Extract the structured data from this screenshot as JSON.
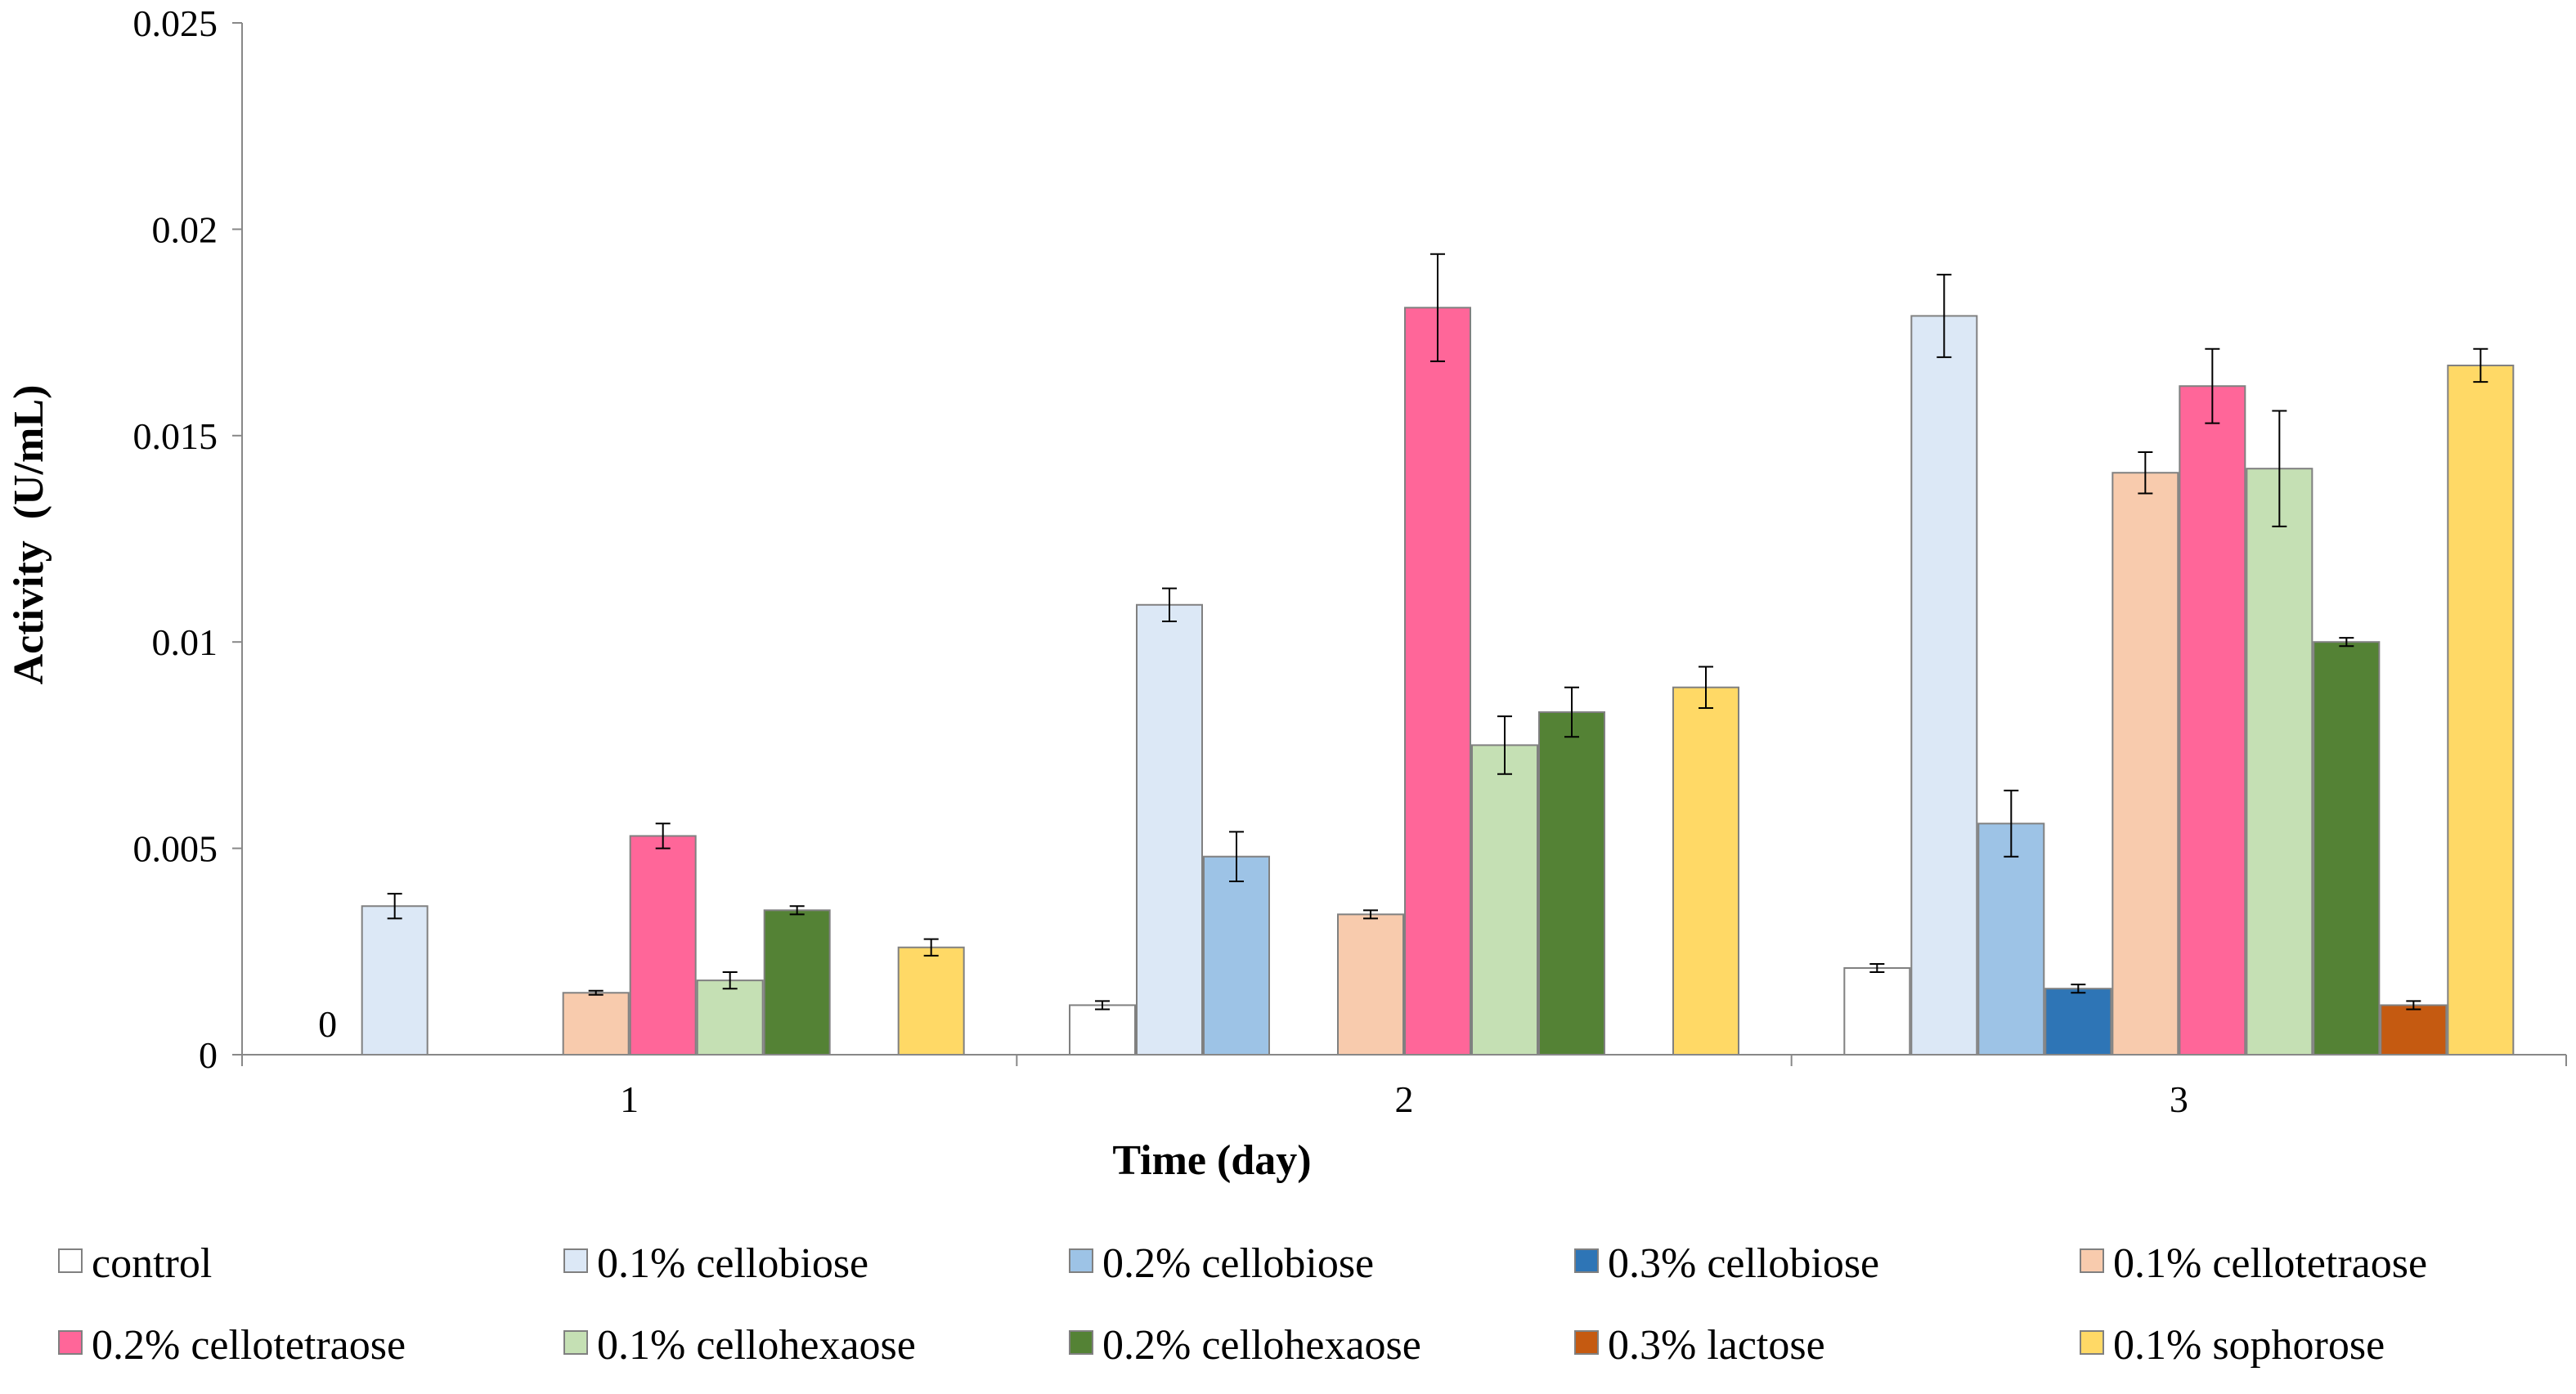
{
  "chart_data": {
    "type": "bar",
    "title": "",
    "xlabel": "Time (day)",
    "ylabel": "Activity  (U/mL)",
    "categories": [
      "1",
      "2",
      "3"
    ],
    "ylim": [
      0,
      0.025
    ],
    "yticks": [
      0,
      0.005,
      0.01,
      0.015,
      0.02,
      0.025
    ],
    "ytick_labels": [
      "0",
      "0.005",
      "0.01",
      "0.015",
      "0.02",
      "0.025"
    ],
    "grid": false,
    "legend_position": "bottom",
    "annotations": [
      {
        "text": "0",
        "category": "1",
        "series": "control"
      }
    ],
    "series": [
      {
        "name": "control",
        "color": "#ffffff",
        "values": [
          0,
          0.0012,
          0.0021
        ],
        "errors": [
          0,
          0.0001,
          0.0001
        ]
      },
      {
        "name": "0.1% cellobiose",
        "color": "#dce8f6",
        "values": [
          0.0036,
          0.0109,
          0.0179
        ],
        "errors": [
          0.0003,
          0.0004,
          0.001
        ]
      },
      {
        "name": "0.2% cellobiose",
        "color": "#9dc3e6",
        "values": [
          null,
          0.0048,
          0.0056
        ],
        "errors": [
          0,
          0.0006,
          0.0008
        ]
      },
      {
        "name": "0.3% cellobiose",
        "color": "#2e75b6",
        "values": [
          null,
          null,
          0.0016
        ],
        "errors": [
          0,
          0,
          0.0001
        ]
      },
      {
        "name": "0.1% cellotetraose",
        "color": "#f8cbad",
        "values": [
          0.0015,
          0.0034,
          0.0141
        ],
        "errors": [
          5e-05,
          0.0001,
          0.0005
        ]
      },
      {
        "name": "0.2% cellotetraose",
        "color": "#ff6699",
        "values": [
          0.0053,
          0.0181,
          0.0162
        ],
        "errors": [
          0.0003,
          0.0013,
          0.0009
        ]
      },
      {
        "name": "0.1% cellohexaose",
        "color": "#c5e0b4",
        "values": [
          0.0018,
          0.0075,
          0.0142
        ],
        "errors": [
          0.0002,
          0.0007,
          0.0014
        ]
      },
      {
        "name": "0.2% cellohexaose",
        "color": "#548235",
        "values": [
          0.0035,
          0.0083,
          0.01
        ],
        "errors": [
          0.0001,
          0.0006,
          0.0001
        ]
      },
      {
        "name": "0.3% lactose",
        "color": "#c55a11",
        "values": [
          null,
          null,
          0.0012
        ],
        "errors": [
          0,
          0,
          0.0001
        ]
      },
      {
        "name": "0.1% sophorose",
        "color": "#ffd966",
        "values": [
          0.0026,
          0.0089,
          0.0167
        ],
        "errors": [
          0.0002,
          0.0005,
          0.0004
        ]
      }
    ]
  }
}
